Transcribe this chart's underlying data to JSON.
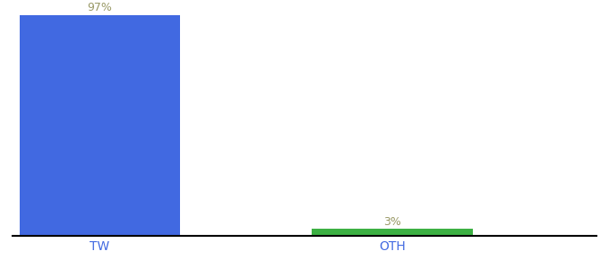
{
  "categories": [
    "TW",
    "OTH"
  ],
  "values": [
    97,
    3
  ],
  "bar_colors": [
    "#4169e1",
    "#3cb043"
  ],
  "label_texts": [
    "97%",
    "3%"
  ],
  "label_color": "#999966",
  "ylim": [
    0,
    100
  ],
  "background_color": "#ffffff",
  "tick_label_color": "#4169e1",
  "axis_line_color": "#000000",
  "bar_width": 0.55,
  "figsize": [
    6.8,
    3.0
  ],
  "dpi": 100,
  "xlim": [
    -0.3,
    1.7
  ]
}
